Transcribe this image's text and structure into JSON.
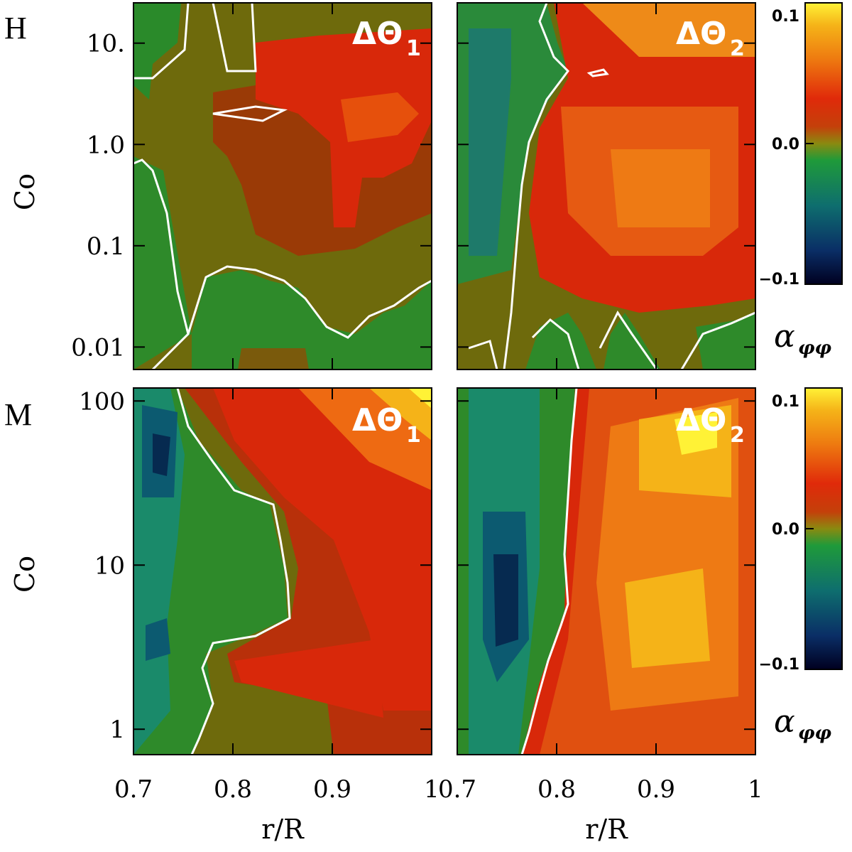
{
  "figure": {
    "xlabel": "r/R",
    "colorbar_label_symbol": "α",
    "colorbar_label_sub": "φφ"
  },
  "colors": {
    "contour_line": "#ffffff",
    "colormap": [
      "#000020",
      "#0a2e66",
      "#0e6e6e",
      "#1f9a3a",
      "#6a6a0a",
      "#8a3a05",
      "#d92a0a",
      "#ee7a10",
      "#f5b318",
      "#fff236"
    ]
  },
  "rows": [
    {
      "label": "H",
      "ylabel": "Co",
      "y_scale": "log",
      "ylim": [
        0.006,
        25
      ],
      "yticks": [
        0.01,
        0.1,
        1.0,
        10.0
      ],
      "ytick_labels": [
        "0.01",
        "0.1",
        "1.0",
        "10."
      ],
      "colorbar": {
        "min": -0.1,
        "max": 0.1,
        "tick_labels": [
          "0.1",
          "0.0",
          "−0.1"
        ]
      }
    },
    {
      "label": "M",
      "ylabel": "Co",
      "y_scale": "log",
      "ylim": [
        0.7,
        120
      ],
      "yticks": [
        1,
        10,
        100
      ],
      "ytick_labels": [
        "1",
        "10",
        "100"
      ],
      "colorbar": {
        "min": -0.1,
        "max": 0.1,
        "tick_labels": [
          "0.1",
          "0.0",
          "−0.1"
        ]
      }
    }
  ],
  "xaxis": {
    "xlim": [
      0.7,
      1.0
    ],
    "xticks": [
      0.7,
      0.8,
      0.9,
      1.0
    ],
    "xtick_labels": [
      "0.7",
      "0.8",
      "0.9",
      "1"
    ]
  },
  "chart_data": [
    {
      "type": "heatmap",
      "panel": "H-left",
      "title": "ΔΘ",
      "subscript": "1",
      "x": [
        0.7,
        0.75,
        0.8,
        0.85,
        0.9,
        0.95,
        1.0
      ],
      "y": [
        0.01,
        0.1,
        1.0,
        10.0
      ],
      "z": [
        [
          0.0,
          0.0,
          0.01,
          0.0,
          0.01,
          0.0,
          0.0
        ],
        [
          -0.01,
          0.0,
          0.01,
          0.02,
          0.03,
          0.02,
          0.01
        ],
        [
          -0.01,
          0.0,
          0.02,
          0.03,
          0.04,
          0.04,
          0.02
        ],
        [
          -0.01,
          -0.01,
          0.0,
          0.0,
          0.02,
          0.04,
          0.04
        ]
      ]
    },
    {
      "type": "heatmap",
      "panel": "H-right",
      "title": "ΔΘ",
      "subscript": "2",
      "x": [
        0.7,
        0.75,
        0.8,
        0.85,
        0.9,
        0.95,
        1.0
      ],
      "y": [
        0.01,
        0.1,
        1.0,
        10.0
      ],
      "z": [
        [
          -0.01,
          0.0,
          0.01,
          0.0,
          0.01,
          0.0,
          0.0
        ],
        [
          -0.02,
          -0.01,
          0.03,
          0.04,
          0.05,
          0.04,
          0.02
        ],
        [
          -0.02,
          -0.01,
          0.04,
          0.05,
          0.05,
          0.05,
          0.03
        ],
        [
          -0.03,
          -0.01,
          0.04,
          0.05,
          0.06,
          0.05,
          0.05
        ]
      ]
    },
    {
      "type": "heatmap",
      "panel": "M-left",
      "title": "ΔΘ",
      "subscript": "1",
      "x": [
        0.7,
        0.75,
        0.8,
        0.85,
        0.9,
        0.95,
        1.0
      ],
      "y": [
        1,
        3,
        10,
        30,
        100
      ],
      "z": [
        [
          -0.02,
          -0.01,
          0.01,
          0.02,
          0.03,
          0.02,
          0.01
        ],
        [
          -0.06,
          -0.02,
          0.03,
          0.03,
          0.04,
          0.04,
          0.03
        ],
        [
          -0.03,
          -0.02,
          0.0,
          0.01,
          0.04,
          0.04,
          0.03
        ],
        [
          -0.07,
          -0.03,
          0.0,
          0.02,
          0.04,
          0.06,
          0.05
        ],
        [
          -0.06,
          0.0,
          0.04,
          0.05,
          0.06,
          0.08,
          0.1
        ]
      ]
    },
    {
      "type": "heatmap",
      "panel": "M-right",
      "title": "ΔΘ",
      "subscript": "2",
      "x": [
        0.7,
        0.75,
        0.8,
        0.85,
        0.9,
        0.95,
        1.0
      ],
      "y": [
        1,
        3,
        10,
        30,
        100
      ],
      "z": [
        [
          -0.03,
          -0.02,
          0.04,
          0.05,
          0.05,
          0.05,
          0.03
        ],
        [
          -0.05,
          -0.07,
          0.03,
          0.05,
          0.07,
          0.06,
          0.04
        ],
        [
          -0.04,
          -0.06,
          0.02,
          0.05,
          0.05,
          0.05,
          0.04
        ],
        [
          -0.03,
          -0.05,
          0.03,
          0.05,
          0.06,
          0.07,
          0.05
        ],
        [
          -0.02,
          -0.03,
          0.04,
          0.05,
          0.07,
          0.08,
          0.05
        ]
      ]
    }
  ]
}
